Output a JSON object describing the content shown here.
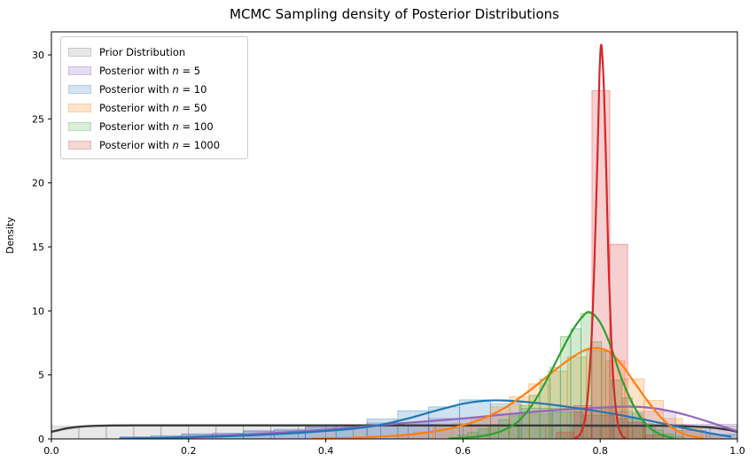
{
  "figure": {
    "background": "#ffffff"
  },
  "chart_data": {
    "type": "kde+histogram",
    "title": "MCMC Sampling density of Posterior Distributions",
    "xlabel": "",
    "ylabel": "Density",
    "xlim": [
      0.0,
      1.0
    ],
    "ylim": [
      0,
      31.8
    ],
    "grid": false,
    "legend_position": "upper-left",
    "xticks": {
      "values": [
        0.0,
        0.2,
        0.4,
        0.6,
        0.8,
        1.0
      ],
      "labels": [
        "0.0",
        "0.2",
        "0.4",
        "0.6",
        "0.8",
        "1.0"
      ]
    },
    "yticks": {
      "values": [
        0,
        5,
        10,
        15,
        20,
        25,
        30
      ],
      "labels": [
        "0",
        "5",
        "10",
        "15",
        "20",
        "25",
        "30"
      ]
    },
    "legend": [
      {
        "id": "prior",
        "prefix": "Prior Distribution",
        "var": "",
        "suffix": "",
        "swatch_fill": "#e7e7e7",
        "swatch_edge": "#c9c9c9"
      },
      {
        "id": "n5",
        "prefix": "Posterior with ",
        "var": "n",
        "suffix": " = 5",
        "swatch_fill": "#e6ddf1",
        "swatch_edge": "#c9bcdc"
      },
      {
        "id": "n10",
        "prefix": "Posterior with ",
        "var": "n",
        "suffix": " = 10",
        "swatch_fill": "#d4e4f2",
        "swatch_edge": "#b2cde6"
      },
      {
        "id": "n50",
        "prefix": "Posterior with ",
        "var": "n",
        "suffix": " = 50",
        "swatch_fill": "#ffe4c9",
        "swatch_edge": "#f5cda4"
      },
      {
        "id": "n100",
        "prefix": "Posterior with ",
        "var": "n",
        "suffix": " = 100",
        "swatch_fill": "#d9edd9",
        "swatch_edge": "#b5dcb5"
      },
      {
        "id": "n1000",
        "prefix": "Posterior with ",
        "var": "n",
        "suffix": " = 1000",
        "swatch_fill": "#f7d6d6",
        "swatch_edge": "#eab5b6"
      }
    ],
    "series": [
      {
        "id": "prior",
        "label": "Prior Distribution",
        "line_color": "#3a3a3a",
        "fill_color": "rgba(150,150,150,0.22)",
        "edge_color": "rgba(120,120,120,0.45)",
        "kde": [
          [
            0,
            0.55
          ],
          [
            0.01,
            0.68
          ],
          [
            0.02,
            0.8
          ],
          [
            0.04,
            0.95
          ],
          [
            0.07,
            1.03
          ],
          [
            0.12,
            1.06
          ],
          [
            0.2,
            1.06
          ],
          [
            0.3,
            1.06
          ],
          [
            0.4,
            1.06
          ],
          [
            0.5,
            1.06
          ],
          [
            0.6,
            1.05
          ],
          [
            0.7,
            1.05
          ],
          [
            0.8,
            1.04
          ],
          [
            0.88,
            1.03
          ],
          [
            0.92,
            1.0
          ],
          [
            0.95,
            0.93
          ],
          [
            0.97,
            0.84
          ],
          [
            0.99,
            0.68
          ],
          [
            1.0,
            0.55
          ]
        ],
        "bars": [
          [
            0.0,
            0.04,
            0.98
          ],
          [
            0.04,
            0.08,
            1.02
          ],
          [
            0.08,
            0.12,
            1.0
          ],
          [
            0.12,
            0.16,
            1.03
          ],
          [
            0.16,
            0.2,
            0.99
          ],
          [
            0.2,
            0.24,
            1.01
          ],
          [
            0.24,
            0.28,
            1.0
          ],
          [
            0.28,
            0.32,
            1.02
          ],
          [
            0.32,
            0.36,
            0.98
          ],
          [
            0.36,
            0.4,
            1.0
          ],
          [
            0.4,
            0.44,
            1.03
          ],
          [
            0.44,
            0.48,
            0.99
          ],
          [
            0.48,
            0.52,
            1.01
          ],
          [
            0.52,
            0.56,
            1.0
          ],
          [
            0.56,
            0.6,
            1.02
          ],
          [
            0.6,
            0.64,
            0.98
          ],
          [
            0.64,
            0.68,
            1.01
          ],
          [
            0.68,
            0.72,
            1.0
          ],
          [
            0.72,
            0.76,
            1.03
          ],
          [
            0.76,
            0.8,
            0.99
          ],
          [
            0.8,
            0.84,
            1.0
          ],
          [
            0.84,
            0.88,
            1.02
          ],
          [
            0.88,
            0.92,
            0.98
          ],
          [
            0.92,
            0.96,
            1.01
          ],
          [
            0.96,
            1.0,
            1.0
          ]
        ]
      },
      {
        "id": "n5",
        "label": "Posterior with n = 5",
        "line_color": "#9467bd",
        "fill_color": "rgba(148,103,189,0.22)",
        "edge_color": "rgba(148,103,189,0.45)",
        "kde": [
          [
            0.1,
            0.02
          ],
          [
            0.15,
            0.08
          ],
          [
            0.2,
            0.16
          ],
          [
            0.25,
            0.27
          ],
          [
            0.3,
            0.4
          ],
          [
            0.35,
            0.55
          ],
          [
            0.4,
            0.72
          ],
          [
            0.45,
            0.95
          ],
          [
            0.5,
            1.18
          ],
          [
            0.55,
            1.38
          ],
          [
            0.6,
            1.6
          ],
          [
            0.65,
            1.85
          ],
          [
            0.7,
            2.1
          ],
          [
            0.75,
            2.3
          ],
          [
            0.8,
            2.45
          ],
          [
            0.84,
            2.52
          ],
          [
            0.87,
            2.45
          ],
          [
            0.9,
            2.2
          ],
          [
            0.93,
            1.8
          ],
          [
            0.96,
            1.3
          ],
          [
            0.98,
            0.95
          ],
          [
            1.0,
            0.6
          ]
        ],
        "bars": [
          [
            0.1,
            0.19,
            0.15
          ],
          [
            0.19,
            0.28,
            0.4
          ],
          [
            0.28,
            0.37,
            0.65
          ],
          [
            0.37,
            0.46,
            0.95
          ],
          [
            0.46,
            0.55,
            1.25
          ],
          [
            0.55,
            0.64,
            1.6
          ],
          [
            0.64,
            0.73,
            1.95
          ],
          [
            0.73,
            0.82,
            2.4
          ],
          [
            0.82,
            0.91,
            2.15
          ],
          [
            0.91,
            1.0,
            1.15
          ]
        ]
      },
      {
        "id": "n10",
        "label": "Posterior with n = 10",
        "line_color": "#1f77b4",
        "fill_color": "rgba(31,119,180,0.22)",
        "edge_color": "rgba(31,119,180,0.45)",
        "kde": [
          [
            0.1,
            0.02
          ],
          [
            0.15,
            0.06
          ],
          [
            0.2,
            0.12
          ],
          [
            0.25,
            0.2
          ],
          [
            0.3,
            0.3
          ],
          [
            0.35,
            0.44
          ],
          [
            0.4,
            0.62
          ],
          [
            0.44,
            0.8
          ],
          [
            0.48,
            1.1
          ],
          [
            0.52,
            1.6
          ],
          [
            0.56,
            2.2
          ],
          [
            0.6,
            2.75
          ],
          [
            0.63,
            2.97
          ],
          [
            0.66,
            3.0
          ],
          [
            0.7,
            2.85
          ],
          [
            0.74,
            2.6
          ],
          [
            0.78,
            2.3
          ],
          [
            0.82,
            1.95
          ],
          [
            0.86,
            1.55
          ],
          [
            0.9,
            1.1
          ],
          [
            0.94,
            0.65
          ],
          [
            0.97,
            0.35
          ],
          [
            0.99,
            0.18
          ]
        ],
        "bars": [
          [
            0.1,
            0.145,
            0.15
          ],
          [
            0.145,
            0.19,
            0.25
          ],
          [
            0.19,
            0.235,
            0.35
          ],
          [
            0.235,
            0.28,
            0.45
          ],
          [
            0.28,
            0.325,
            0.6
          ],
          [
            0.325,
            0.37,
            0.75
          ],
          [
            0.37,
            0.415,
            0.9
          ],
          [
            0.415,
            0.46,
            1.1
          ],
          [
            0.46,
            0.505,
            1.55
          ],
          [
            0.505,
            0.55,
            2.2
          ],
          [
            0.55,
            0.595,
            2.5
          ],
          [
            0.595,
            0.64,
            3.05
          ],
          [
            0.64,
            0.685,
            2.75
          ],
          [
            0.685,
            0.73,
            2.4
          ],
          [
            0.73,
            0.775,
            2.1
          ],
          [
            0.775,
            0.82,
            1.85
          ],
          [
            0.82,
            0.865,
            1.6
          ],
          [
            0.865,
            0.91,
            1.15
          ],
          [
            0.91,
            0.955,
            0.65
          ],
          [
            0.955,
            1.0,
            0.35
          ]
        ]
      },
      {
        "id": "n50",
        "label": "Posterior with n = 50",
        "line_color": "#ff7f0e",
        "fill_color": "rgba(255,127,14,0.22)",
        "edge_color": "rgba(255,127,14,0.45)",
        "kde": [
          [
            0.38,
            0.02
          ],
          [
            0.42,
            0.06
          ],
          [
            0.46,
            0.13
          ],
          [
            0.5,
            0.25
          ],
          [
            0.54,
            0.45
          ],
          [
            0.58,
            0.8
          ],
          [
            0.62,
            1.4
          ],
          [
            0.66,
            2.4
          ],
          [
            0.7,
            3.9
          ],
          [
            0.73,
            5.2
          ],
          [
            0.76,
            6.4
          ],
          [
            0.785,
            7.05
          ],
          [
            0.81,
            6.9
          ],
          [
            0.83,
            5.9
          ],
          [
            0.85,
            4.4
          ],
          [
            0.87,
            2.9
          ],
          [
            0.89,
            1.6
          ],
          [
            0.91,
            0.7
          ],
          [
            0.93,
            0.25
          ],
          [
            0.95,
            0.08
          ]
        ],
        "bars": [
          [
            0.5,
            0.528,
            0.3
          ],
          [
            0.528,
            0.556,
            0.55
          ],
          [
            0.556,
            0.584,
            0.85
          ],
          [
            0.584,
            0.612,
            1.2
          ],
          [
            0.612,
            0.64,
            1.7
          ],
          [
            0.64,
            0.668,
            2.5
          ],
          [
            0.668,
            0.696,
            3.3
          ],
          [
            0.696,
            0.724,
            4.3
          ],
          [
            0.724,
            0.752,
            5.3
          ],
          [
            0.752,
            0.78,
            6.4
          ],
          [
            0.78,
            0.808,
            6.9
          ],
          [
            0.808,
            0.836,
            6.1
          ],
          [
            0.836,
            0.864,
            4.7
          ],
          [
            0.864,
            0.892,
            3.0
          ],
          [
            0.892,
            0.92,
            1.6
          ],
          [
            0.92,
            0.948,
            0.8
          ],
          [
            0.948,
            0.976,
            0.35
          ]
        ]
      },
      {
        "id": "n100",
        "label": "Posterior with n = 100",
        "line_color": "#2ca02c",
        "fill_color": "rgba(44,160,44,0.22)",
        "edge_color": "rgba(44,160,44,0.45)",
        "kde": [
          [
            0.58,
            0.04
          ],
          [
            0.61,
            0.12
          ],
          [
            0.64,
            0.35
          ],
          [
            0.66,
            0.7
          ],
          [
            0.68,
            1.35
          ],
          [
            0.7,
            2.6
          ],
          [
            0.72,
            4.4
          ],
          [
            0.74,
            6.5
          ],
          [
            0.76,
            8.5
          ],
          [
            0.775,
            9.6
          ],
          [
            0.785,
            9.9
          ],
          [
            0.8,
            9.1
          ],
          [
            0.815,
            7.3
          ],
          [
            0.83,
            4.9
          ],
          [
            0.845,
            3.0
          ],
          [
            0.86,
            1.6
          ],
          [
            0.875,
            0.75
          ],
          [
            0.89,
            0.3
          ],
          [
            0.905,
            0.1
          ]
        ],
        "bars": [
          [
            0.592,
            0.607,
            0.3
          ],
          [
            0.607,
            0.622,
            0.5
          ],
          [
            0.622,
            0.637,
            0.8
          ],
          [
            0.637,
            0.652,
            1.1
          ],
          [
            0.652,
            0.667,
            1.5
          ],
          [
            0.667,
            0.682,
            2.0
          ],
          [
            0.682,
            0.697,
            2.6
          ],
          [
            0.697,
            0.712,
            3.4
          ],
          [
            0.712,
            0.727,
            4.7
          ],
          [
            0.727,
            0.742,
            5.6
          ],
          [
            0.742,
            0.757,
            8.0
          ],
          [
            0.757,
            0.772,
            8.6
          ],
          [
            0.772,
            0.787,
            9.8
          ],
          [
            0.787,
            0.802,
            7.6
          ],
          [
            0.802,
            0.817,
            6.8
          ],
          [
            0.817,
            0.832,
            4.6
          ],
          [
            0.832,
            0.847,
            3.2
          ],
          [
            0.847,
            0.862,
            2.0
          ],
          [
            0.862,
            0.877,
            1.2
          ],
          [
            0.877,
            0.892,
            0.7
          ],
          [
            0.892,
            0.907,
            0.4
          ],
          [
            0.907,
            0.922,
            0.2
          ]
        ]
      },
      {
        "id": "n1000",
        "label": "Posterior with n = 1000",
        "line_color": "#d62728",
        "fill_color": "rgba(214,39,40,0.22)",
        "edge_color": "rgba(214,39,40,0.45)",
        "kde": [
          [
            0.763,
            0.05
          ],
          [
            0.768,
            0.2
          ],
          [
            0.773,
            0.6
          ],
          [
            0.778,
            1.6
          ],
          [
            0.783,
            4.0
          ],
          [
            0.788,
            8.5
          ],
          [
            0.792,
            14.5
          ],
          [
            0.796,
            22.0
          ],
          [
            0.799,
            28.5
          ],
          [
            0.801,
            30.7
          ],
          [
            0.803,
            30.0
          ],
          [
            0.806,
            26.5
          ],
          [
            0.809,
            20.5
          ],
          [
            0.812,
            14.0
          ],
          [
            0.816,
            8.0
          ],
          [
            0.82,
            4.0
          ],
          [
            0.824,
            1.8
          ],
          [
            0.828,
            0.7
          ],
          [
            0.832,
            0.25
          ],
          [
            0.836,
            0.08
          ]
        ],
        "bars": [
          [
            0.736,
            0.762,
            0.5
          ],
          [
            0.762,
            0.788,
            2.6
          ],
          [
            0.788,
            0.814,
            27.2
          ],
          [
            0.814,
            0.84,
            15.2
          ],
          [
            0.84,
            0.866,
            1.3
          ],
          [
            0.866,
            0.892,
            0.3
          ]
        ]
      }
    ]
  }
}
